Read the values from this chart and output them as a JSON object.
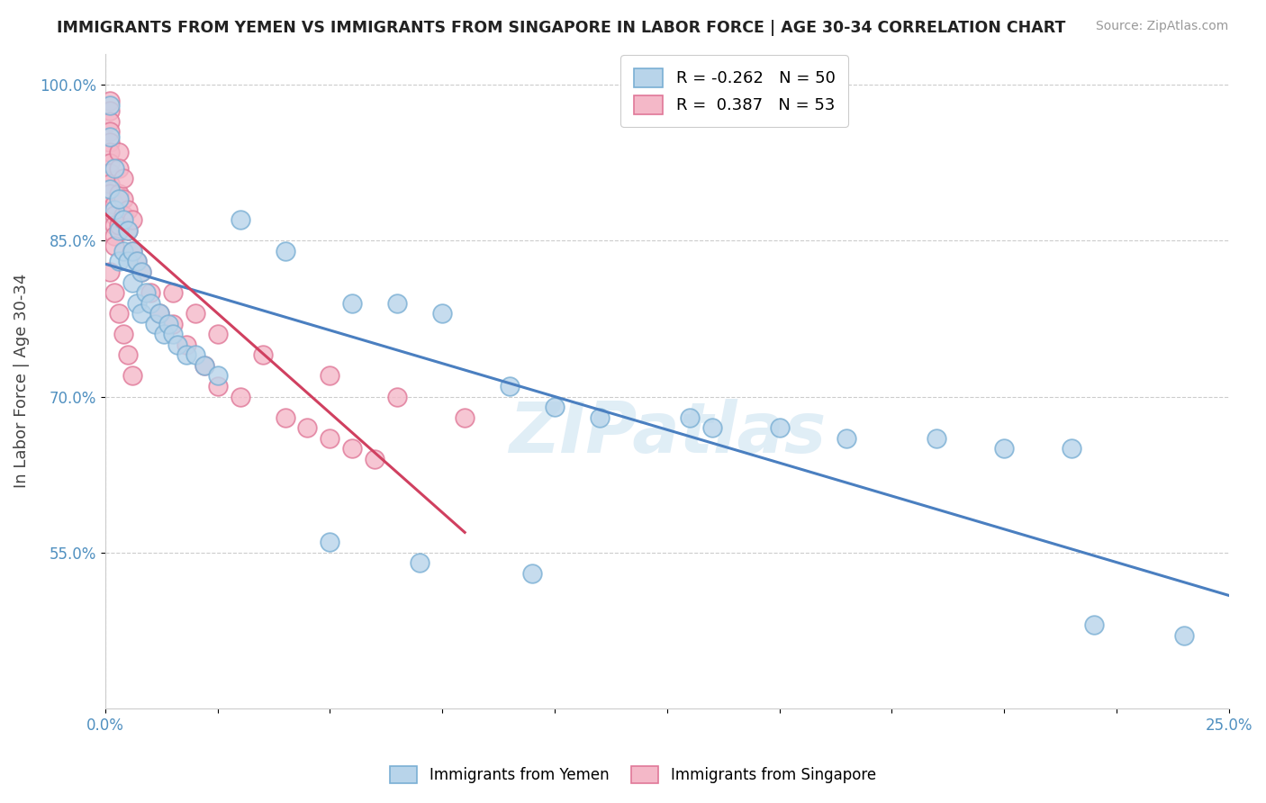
{
  "title": "IMMIGRANTS FROM YEMEN VS IMMIGRANTS FROM SINGAPORE IN LABOR FORCE | AGE 30-34 CORRELATION CHART",
  "source": "Source: ZipAtlas.com",
  "ylabel": "In Labor Force | Age 30-34",
  "legend_blue_R": -0.262,
  "legend_blue_N": 50,
  "legend_pink_R": 0.387,
  "legend_pink_N": 53,
  "blue_color": "#b8d4ea",
  "blue_edge": "#7aafd4",
  "pink_color": "#f4b8c8",
  "pink_edge": "#e07898",
  "blue_line_color": "#4a7fc0",
  "pink_line_color": "#d04060",
  "watermark": "ZIPatlas",
  "blue_x": [
    0.001,
    0.001,
    0.001,
    0.002,
    0.002,
    0.003,
    0.003,
    0.003,
    0.004,
    0.004,
    0.005,
    0.005,
    0.006,
    0.006,
    0.007,
    0.007,
    0.008,
    0.008,
    0.009,
    0.01,
    0.011,
    0.012,
    0.013,
    0.014,
    0.015,
    0.016,
    0.018,
    0.02,
    0.022,
    0.025,
    0.03,
    0.04,
    0.055,
    0.065,
    0.075,
    0.09,
    0.1,
    0.11,
    0.13,
    0.135,
    0.15,
    0.165,
    0.185,
    0.2,
    0.215,
    0.05,
    0.07,
    0.095,
    0.22,
    0.24
  ],
  "blue_y": [
    0.98,
    0.95,
    0.9,
    0.92,
    0.88,
    0.89,
    0.86,
    0.83,
    0.87,
    0.84,
    0.86,
    0.83,
    0.84,
    0.81,
    0.83,
    0.79,
    0.82,
    0.78,
    0.8,
    0.79,
    0.77,
    0.78,
    0.76,
    0.77,
    0.76,
    0.75,
    0.74,
    0.74,
    0.73,
    0.72,
    0.87,
    0.84,
    0.79,
    0.79,
    0.78,
    0.71,
    0.69,
    0.68,
    0.68,
    0.67,
    0.67,
    0.66,
    0.66,
    0.65,
    0.65,
    0.56,
    0.54,
    0.53,
    0.48,
    0.47
  ],
  "pink_x": [
    0.001,
    0.001,
    0.001,
    0.001,
    0.001,
    0.001,
    0.001,
    0.001,
    0.001,
    0.001,
    0.002,
    0.002,
    0.002,
    0.002,
    0.002,
    0.003,
    0.003,
    0.003,
    0.003,
    0.004,
    0.004,
    0.004,
    0.005,
    0.005,
    0.006,
    0.006,
    0.007,
    0.008,
    0.01,
    0.012,
    0.015,
    0.018,
    0.022,
    0.025,
    0.03,
    0.04,
    0.045,
    0.05,
    0.055,
    0.06,
    0.001,
    0.002,
    0.003,
    0.004,
    0.005,
    0.006,
    0.015,
    0.02,
    0.025,
    0.035,
    0.05,
    0.065,
    0.08
  ],
  "pink_y": [
    0.985,
    0.975,
    0.965,
    0.955,
    0.945,
    0.935,
    0.925,
    0.915,
    0.905,
    0.895,
    0.885,
    0.875,
    0.865,
    0.855,
    0.845,
    0.935,
    0.92,
    0.895,
    0.865,
    0.91,
    0.89,
    0.875,
    0.88,
    0.86,
    0.87,
    0.84,
    0.83,
    0.82,
    0.8,
    0.78,
    0.77,
    0.75,
    0.73,
    0.71,
    0.7,
    0.68,
    0.67,
    0.66,
    0.65,
    0.64,
    0.82,
    0.8,
    0.78,
    0.76,
    0.74,
    0.72,
    0.8,
    0.78,
    0.76,
    0.74,
    0.72,
    0.7,
    0.68
  ],
  "xlim": [
    0.0,
    0.25
  ],
  "ylim": [
    0.4,
    1.03
  ],
  "ytick_vals": [
    0.55,
    0.7,
    0.85,
    1.0
  ],
  "ytick_labels": [
    "55.0%",
    "70.0%",
    "85.0%",
    "100.0%"
  ],
  "xtick_show": [
    "0.0%",
    "25.0%"
  ]
}
